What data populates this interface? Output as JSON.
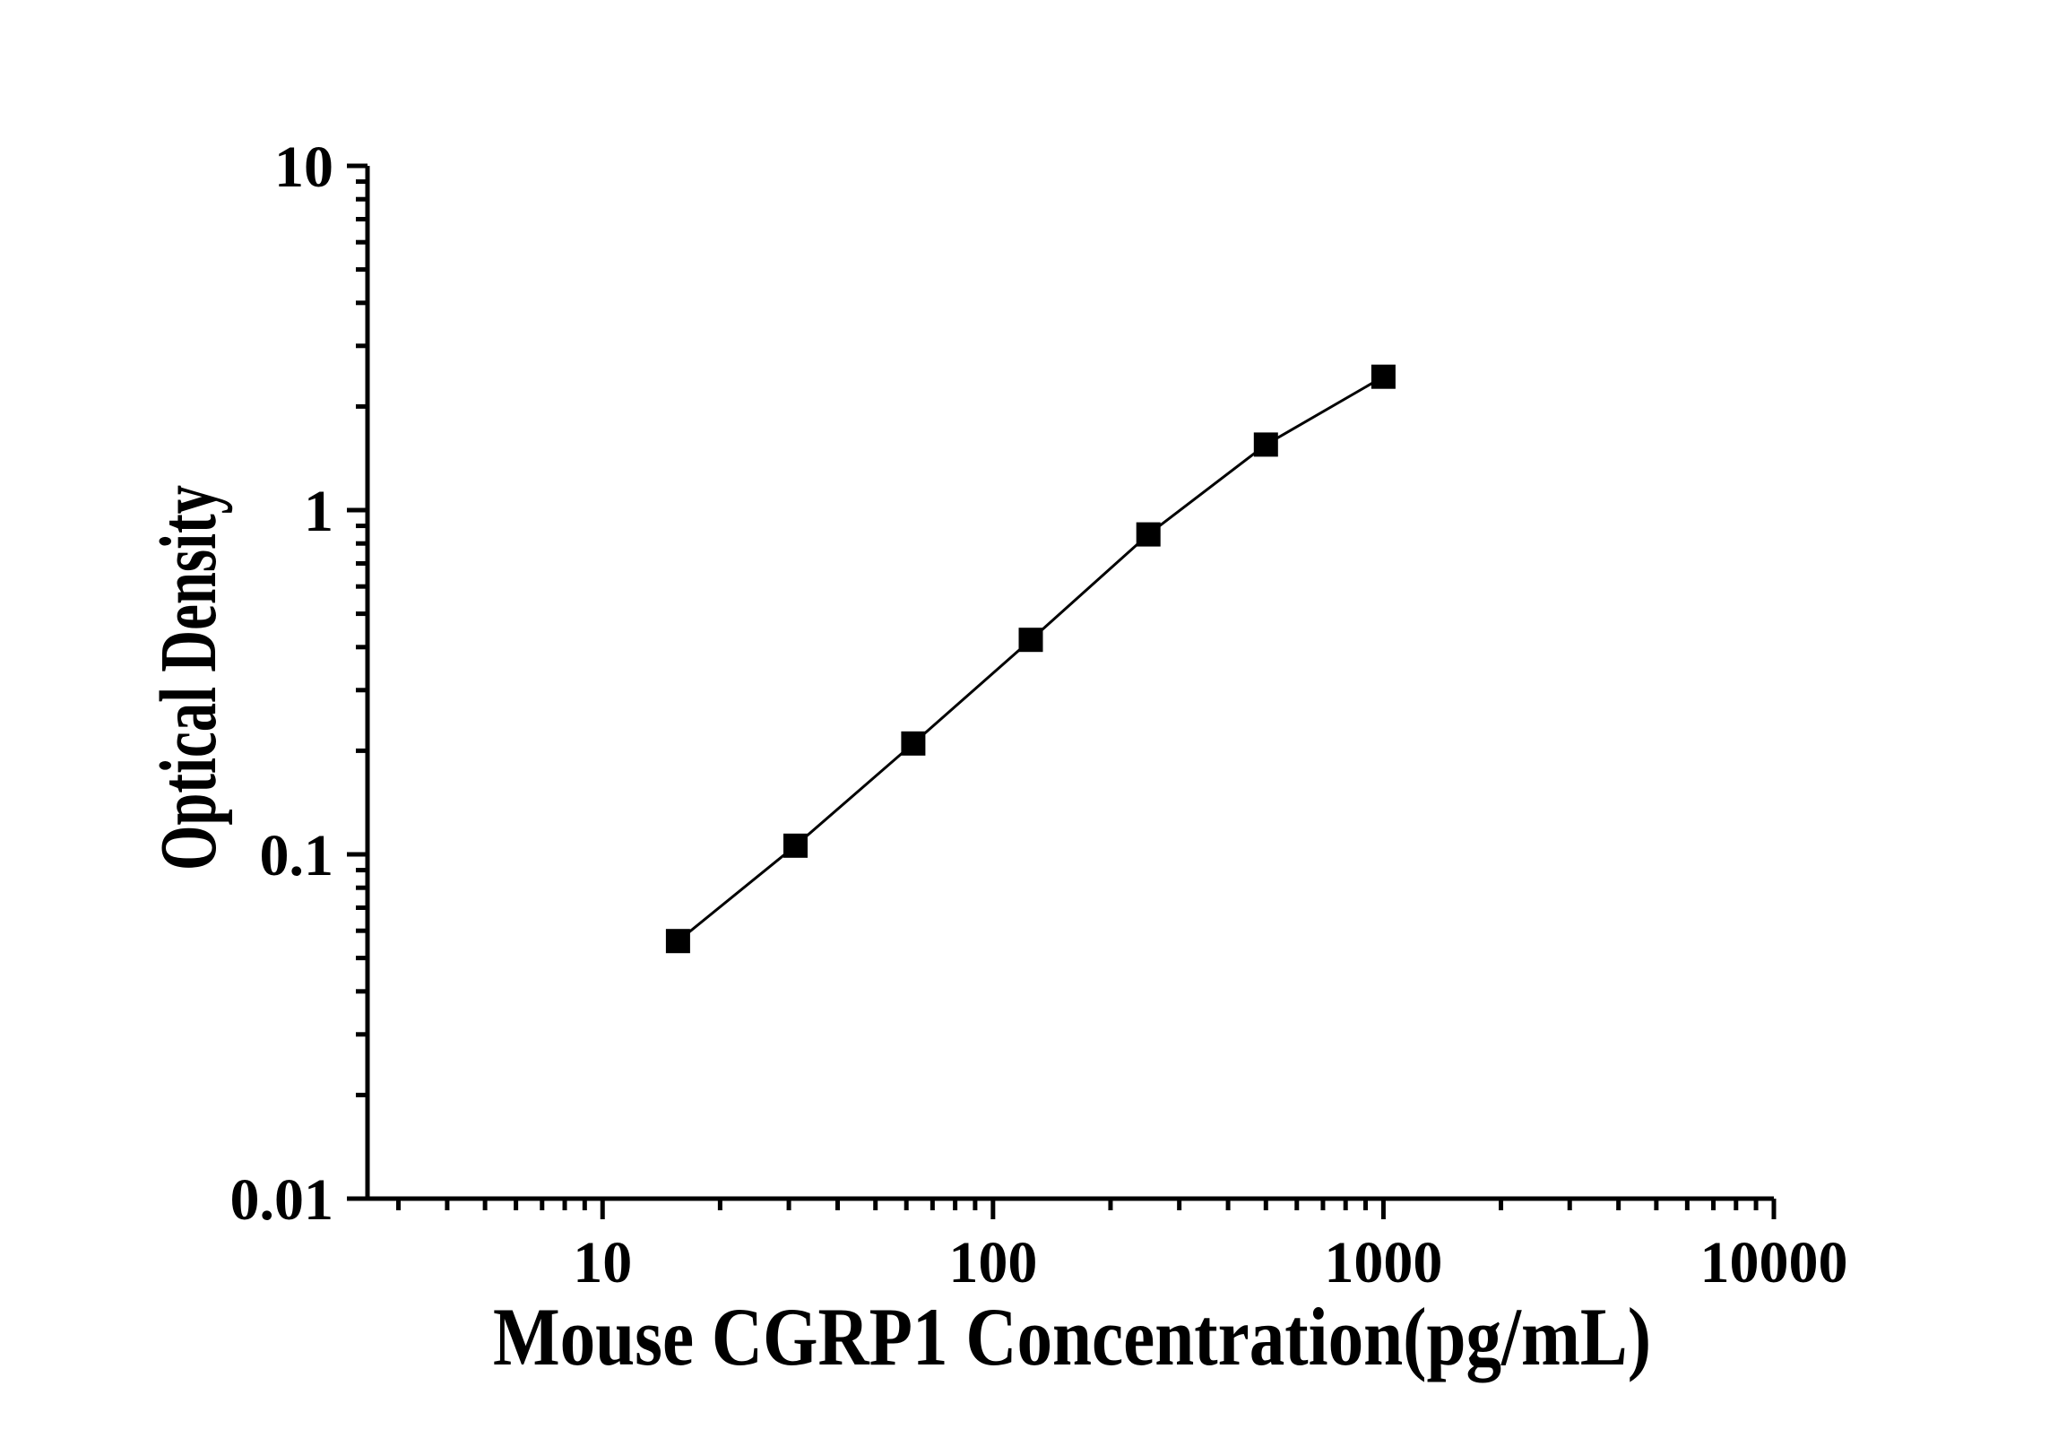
{
  "figure": {
    "background": "#ffffff",
    "foreground": "#000000"
  },
  "chart_data": {
    "type": "line",
    "subtype": "scatter-with-line",
    "title": "",
    "xlabel": "Mouse CGRP1 Concentration(pg/mL)",
    "ylabel": "Optical Density",
    "x_scale": "log",
    "y_scale": "log",
    "xlim": [
      2.5,
      10000
    ],
    "ylim": [
      0.01,
      10
    ],
    "grid": false,
    "legend": "none",
    "line_color": "#000000",
    "marker": "filled-square",
    "marker_color": "#000000",
    "series": [
      {
        "name": "standard-curve",
        "x": [
          15.6,
          31.2,
          62.5,
          125,
          250,
          500,
          1000
        ],
        "y": [
          0.056,
          0.106,
          0.21,
          0.42,
          0.85,
          1.55,
          2.44
        ]
      }
    ],
    "x_ticks": [
      {
        "value": 10,
        "label": "10"
      },
      {
        "value": 100,
        "label": "100"
      },
      {
        "value": 1000,
        "label": "1000"
      },
      {
        "value": 10000,
        "label": "10000"
      }
    ],
    "y_ticks": [
      {
        "value": 10,
        "label": "10"
      },
      {
        "value": 1,
        "label": "1"
      },
      {
        "value": 0.1,
        "label": "0.1"
      },
      {
        "value": 0.01,
        "label": "0.01"
      }
    ]
  }
}
